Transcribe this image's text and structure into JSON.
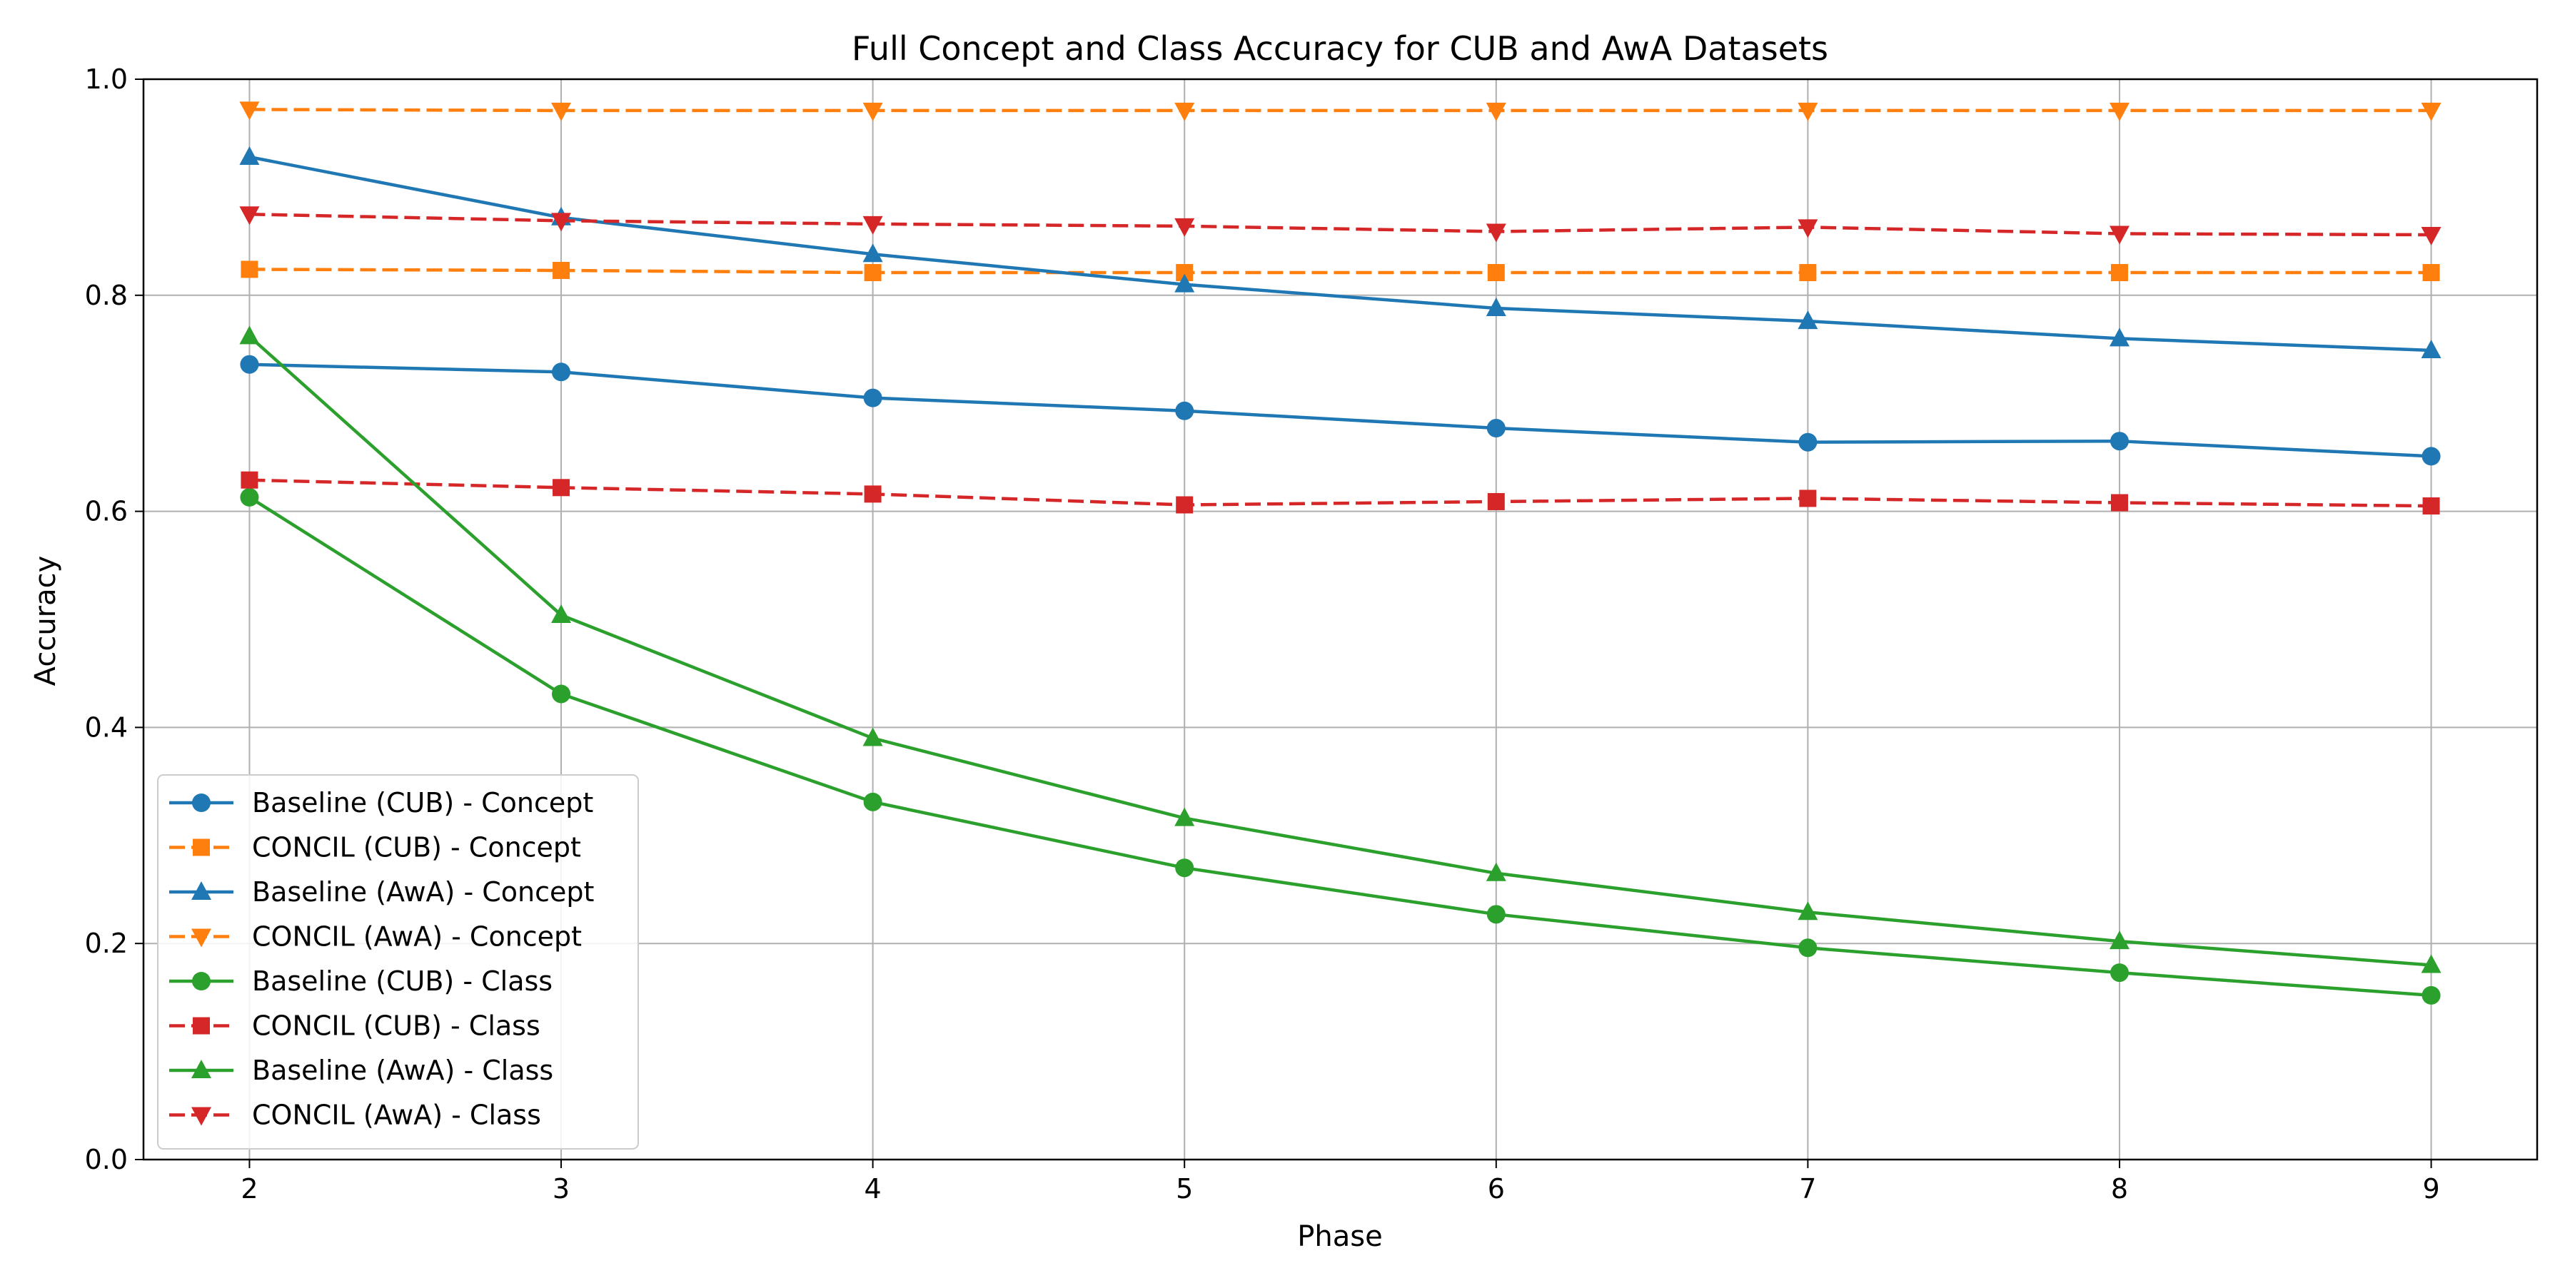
{
  "chart_data": {
    "type": "line",
    "title": "Full Concept and Class Accuracy for CUB and AwA Datasets",
    "xlabel": "Phase",
    "ylabel": "Accuracy",
    "x": [
      2,
      3,
      4,
      5,
      6,
      7,
      8,
      9
    ],
    "xlim": [
      1.66,
      9.34
    ],
    "ylim": [
      0.0,
      1.0
    ],
    "xticks": [
      2,
      3,
      4,
      5,
      6,
      7,
      8,
      9
    ],
    "yticks": [
      0.0,
      0.2,
      0.4,
      0.6,
      0.8,
      1.0
    ],
    "ytick_labels": [
      "0.0",
      "0.2",
      "0.4",
      "0.6",
      "0.8",
      "1.0"
    ],
    "grid": true,
    "legend_position": "lower-left",
    "series": [
      {
        "name": "Baseline (CUB) - Concept",
        "color": "#1f77b4",
        "linestyle": "solid",
        "marker": "circle",
        "values": [
          0.736,
          0.729,
          0.705,
          0.693,
          0.677,
          0.664,
          0.665,
          0.651
        ]
      },
      {
        "name": "CONCIL (CUB) - Concept",
        "color": "#ff7f0e",
        "linestyle": "dashed",
        "marker": "square",
        "values": [
          0.824,
          0.823,
          0.821,
          0.821,
          0.821,
          0.821,
          0.821,
          0.821
        ]
      },
      {
        "name": "Baseline (AwA) - Concept",
        "color": "#1f77b4",
        "linestyle": "solid",
        "marker": "triangle-up",
        "values": [
          0.928,
          0.872,
          0.838,
          0.81,
          0.788,
          0.776,
          0.76,
          0.749
        ]
      },
      {
        "name": "CONCIL (AwA) - Concept",
        "color": "#ff7f0e",
        "linestyle": "dashed",
        "marker": "triangle-down",
        "values": [
          0.972,
          0.971,
          0.971,
          0.971,
          0.971,
          0.971,
          0.971,
          0.971
        ]
      },
      {
        "name": "Baseline (CUB) - Class",
        "color": "#2ca02c",
        "linestyle": "solid",
        "marker": "circle",
        "values": [
          0.613,
          0.431,
          0.331,
          0.27,
          0.227,
          0.196,
          0.173,
          0.152
        ]
      },
      {
        "name": "CONCIL (CUB) - Class",
        "color": "#d62728",
        "linestyle": "dashed",
        "marker": "square",
        "values": [
          0.629,
          0.622,
          0.616,
          0.606,
          0.609,
          0.612,
          0.608,
          0.605
        ]
      },
      {
        "name": "Baseline (AwA) - Class",
        "color": "#2ca02c",
        "linestyle": "solid",
        "marker": "triangle-up",
        "values": [
          0.762,
          0.504,
          0.39,
          0.316,
          0.265,
          0.229,
          0.202,
          0.18
        ]
      },
      {
        "name": "CONCIL (AwA) - Class",
        "color": "#d62728",
        "linestyle": "dashed",
        "marker": "triangle-down",
        "values": [
          0.875,
          0.869,
          0.866,
          0.864,
          0.859,
          0.863,
          0.857,
          0.856
        ]
      }
    ]
  }
}
